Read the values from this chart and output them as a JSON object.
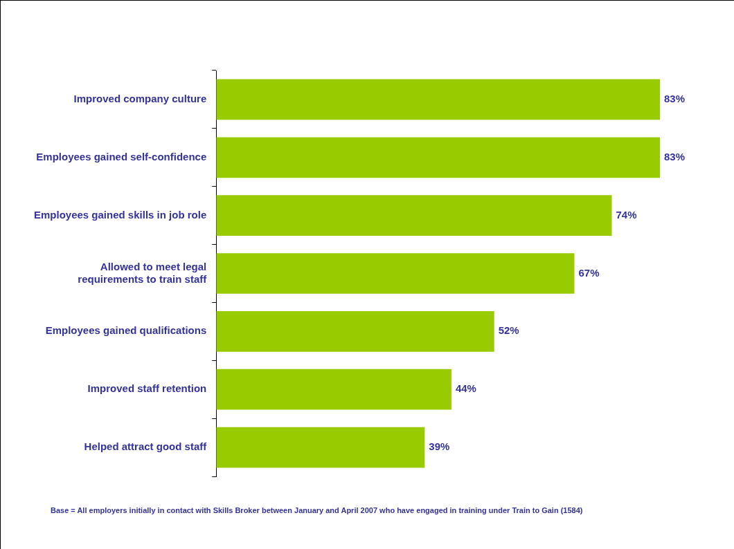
{
  "chart_data": {
    "type": "bar",
    "orientation": "horizontal",
    "categories": [
      "Improved company culture",
      "Employees gained self-confidence",
      "Employees gained skills in job role",
      "Allowed to meet legal requirements to train staff",
      "Employees gained qualifications",
      "Improved staff retention",
      "Helped attract good staff"
    ],
    "values": [
      83,
      83,
      74,
      67,
      52,
      44,
      39
    ],
    "value_labels": [
      "83%",
      "83%",
      "74%",
      "67%",
      "52%",
      "44%",
      "39%"
    ],
    "color": "#99cc00",
    "legend": false,
    "grid": false,
    "tick_labels": "y",
    "annotations": [
      "Base = All employers initially in contact with Skills Broker  between January and April 2007 who have engaged in training under Train to Gain (1584)"
    ]
  }
}
